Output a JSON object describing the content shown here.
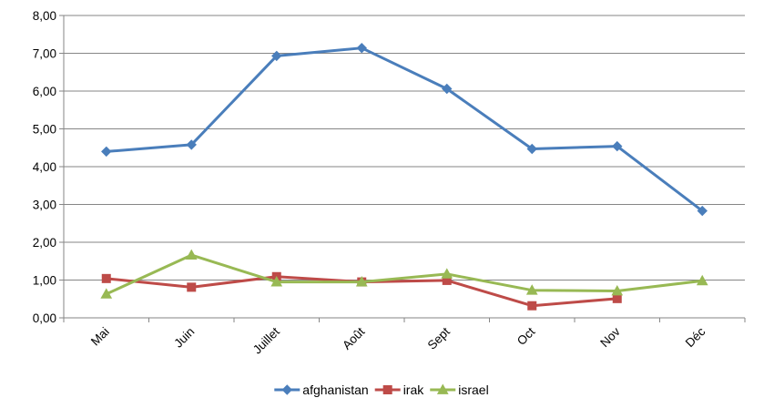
{
  "chart_data": {
    "type": "line",
    "title": "",
    "xlabel": "",
    "ylabel": "",
    "categories": [
      "Mai",
      "Juin",
      "Juillet",
      "Août",
      "Sept",
      "Oct",
      "Nov",
      "Déc"
    ],
    "ylim": [
      0,
      8
    ],
    "ytick_values": [
      0,
      1,
      2,
      3,
      4,
      5,
      6,
      7,
      8
    ],
    "ytick_labels": [
      "0,00",
      "1,00",
      "2,00",
      "3,00",
      "4,00",
      "5,00",
      "6,00",
      "7,00",
      "8,00"
    ],
    "grid": true,
    "legend_position": "bottom",
    "series": [
      {
        "name": "afghanistan",
        "color": "#4A7EBB",
        "marker": "diamond",
        "values": [
          4.4,
          4.58,
          6.93,
          7.14,
          6.06,
          4.47,
          4.54,
          2.83
        ]
      },
      {
        "name": "irak",
        "color": "#BE4B48",
        "marker": "square",
        "values": [
          1.04,
          0.81,
          1.09,
          0.95,
          0.99,
          0.32,
          0.51,
          null
        ]
      },
      {
        "name": "israel",
        "color": "#98B954",
        "marker": "triangle",
        "values": [
          0.63,
          1.66,
          0.95,
          0.95,
          1.16,
          0.73,
          0.71,
          0.98
        ]
      }
    ]
  }
}
